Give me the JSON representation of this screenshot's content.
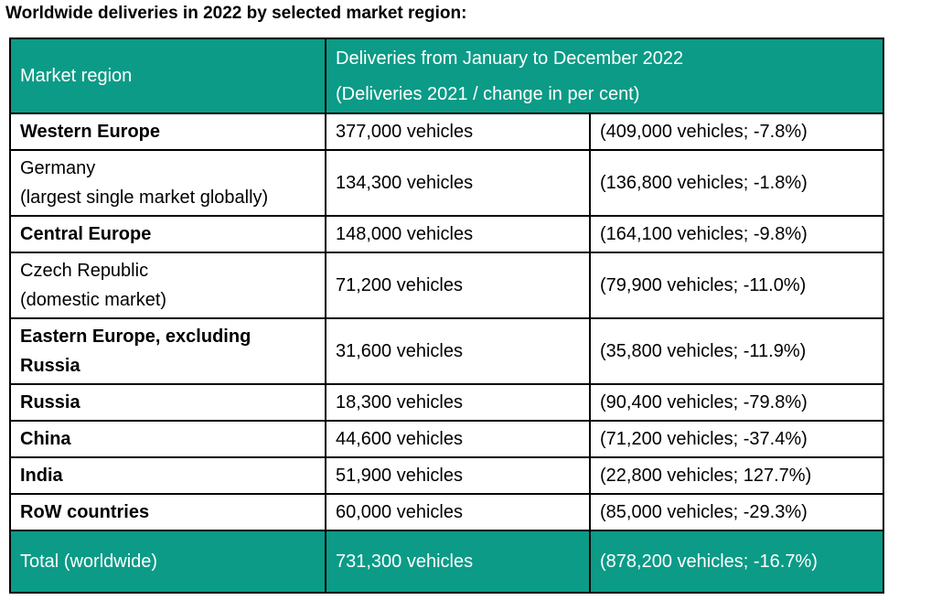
{
  "title": "Worldwide deliveries in 2022 by selected market region:",
  "colors": {
    "header_bg": "#0b9b87",
    "header_text": "#ffffff",
    "border": "#000000"
  },
  "header": {
    "region_label": "Market region",
    "deliveries_line1": "Deliveries from January to December 2022",
    "deliveries_line2": "(Deliveries 2021 / change in per cent)"
  },
  "rows": [
    {
      "region": "Western Europe",
      "region_note": "",
      "bold": true,
      "deliveries": "377,000 vehicles",
      "comparison": "(409,000 vehicles; -7.8%)"
    },
    {
      "region": "Germany",
      "region_note": "(largest single market globally)",
      "bold": false,
      "deliveries": "134,300 vehicles",
      "comparison": "(136,800 vehicles; -1.8%)"
    },
    {
      "region": "Central Europe",
      "region_note": "",
      "bold": true,
      "deliveries": "148,000 vehicles",
      "comparison": "(164,100 vehicles; -9.8%)"
    },
    {
      "region": "Czech Republic",
      "region_note": "(domestic market)",
      "bold": false,
      "deliveries": "71,200 vehicles",
      "comparison": "(79,900 vehicles; -11.0%)"
    },
    {
      "region": "Eastern Europe, excluding",
      "region_note": "Russia",
      "bold": true,
      "deliveries": "31,600 vehicles",
      "comparison": "(35,800 vehicles; -11.9%)"
    },
    {
      "region": "Russia",
      "region_note": "",
      "bold": true,
      "deliveries": "18,300 vehicles",
      "comparison": "(90,400 vehicles; -79.8%)"
    },
    {
      "region": "China",
      "region_note": "",
      "bold": true,
      "deliveries": "44,600 vehicles",
      "comparison": "(71,200 vehicles; -37.4%)"
    },
    {
      "region": "India",
      "region_note": "",
      "bold": true,
      "deliveries": "51,900 vehicles",
      "comparison": "(22,800 vehicles; 127.7%)"
    },
    {
      "region": "RoW countries",
      "region_note": "",
      "bold": true,
      "deliveries": "60,000 vehicles",
      "comparison": "(85,000 vehicles; -29.3%)"
    }
  ],
  "total": {
    "region": "Total (worldwide)",
    "deliveries": "731,300 vehicles",
    "comparison": "(878,200 vehicles; -16.7%)"
  }
}
